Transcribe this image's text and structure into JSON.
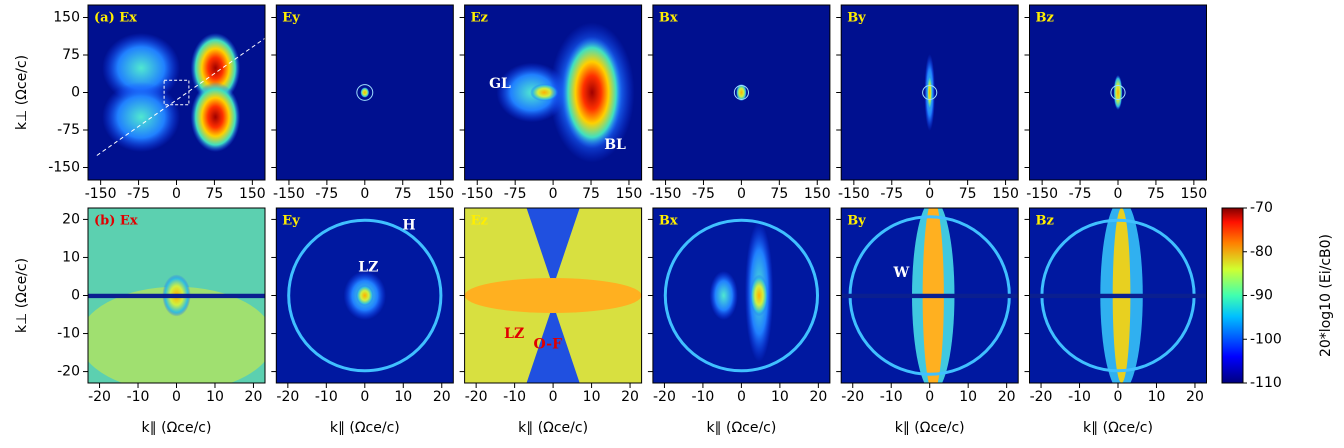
{
  "chart_data": [
    {
      "type": "heatmap",
      "title": "(a) Ex",
      "title_color": "#ffee00",
      "xlim": [
        -175,
        175
      ],
      "ylim": [
        -175,
        175
      ],
      "xticks": [
        -150,
        -75,
        0,
        75,
        150
      ],
      "yticks": [
        150,
        75,
        0,
        -75,
        -150
      ],
      "ylabel": "k⊥ (Ωce/c)"
    },
    {
      "type": "heatmap",
      "title": "Ey",
      "title_color": "#ffee00",
      "xlim": [
        -175,
        175
      ],
      "ylim": [
        -175,
        175
      ],
      "xticks": [
        -150,
        -75,
        0,
        75,
        150
      ],
      "yticks": [
        150,
        75,
        0,
        -75,
        -150
      ]
    },
    {
      "type": "heatmap",
      "title": "Ez",
      "title_color": "#ffee00",
      "xlim": [
        -175,
        175
      ],
      "ylim": [
        -175,
        175
      ],
      "xticks": [
        -150,
        -75,
        0,
        75,
        150
      ],
      "yticks": [
        150,
        75,
        0,
        -75,
        -150
      ],
      "annotations": [
        {
          "text": "GL",
          "color": "#ffffff"
        },
        {
          "text": "BL",
          "color": "#ffffff"
        }
      ]
    },
    {
      "type": "heatmap",
      "title": "Bx",
      "title_color": "#ffee00",
      "xlim": [
        -175,
        175
      ],
      "ylim": [
        -175,
        175
      ],
      "xticks": [
        -150,
        -75,
        0,
        75,
        150
      ],
      "yticks": [
        150,
        75,
        0,
        -75,
        -150
      ]
    },
    {
      "type": "heatmap",
      "title": "By",
      "title_color": "#ffee00",
      "xlim": [
        -175,
        175
      ],
      "ylim": [
        -175,
        175
      ],
      "xticks": [
        -150,
        -75,
        0,
        75,
        150
      ],
      "yticks": [
        150,
        75,
        0,
        -75,
        -150
      ]
    },
    {
      "type": "heatmap",
      "title": "Bz",
      "title_color": "#ffee00",
      "xlim": [
        -175,
        175
      ],
      "ylim": [
        -175,
        175
      ],
      "xticks": [
        -150,
        -75,
        0,
        75,
        150
      ],
      "yticks": [
        150,
        75,
        0,
        -75,
        -150
      ]
    },
    {
      "type": "heatmap",
      "title": "(b) Ex",
      "title_color": "#e00000",
      "xlim": [
        -23,
        23
      ],
      "ylim": [
        -23,
        23
      ],
      "xticks": [
        -20,
        -10,
        0,
        10,
        20
      ],
      "yticks": [
        20,
        10,
        0,
        -10,
        -20
      ],
      "xlabel": "k∥ (Ωce/c)",
      "ylabel": "k⊥ (Ωce/c)"
    },
    {
      "type": "heatmap",
      "title": "Ey",
      "title_color": "#ffee00",
      "xlim": [
        -23,
        23
      ],
      "ylim": [
        -23,
        23
      ],
      "xticks": [
        -20,
        -10,
        0,
        10,
        20
      ],
      "yticks": [
        20,
        10,
        0,
        -10,
        -20
      ],
      "xlabel": "k∥ (Ωce/c)",
      "annotations": [
        {
          "text": "H",
          "color": "#ffffff"
        },
        {
          "text": "LZ",
          "color": "#ffffff"
        }
      ]
    },
    {
      "type": "heatmap",
      "title": "Ez",
      "title_color": "#ffee00",
      "xlim": [
        -23,
        23
      ],
      "ylim": [
        -23,
        23
      ],
      "xticks": [
        -20,
        -10,
        0,
        10,
        20
      ],
      "yticks": [
        20,
        10,
        0,
        -10,
        -20
      ],
      "xlabel": "k∥ (Ωce/c)",
      "annotations": [
        {
          "text": "LZ",
          "color": "#e00000"
        },
        {
          "text": "O-F",
          "color": "#e00000"
        }
      ]
    },
    {
      "type": "heatmap",
      "title": "Bx",
      "title_color": "#ffee00",
      "xlim": [
        -23,
        23
      ],
      "ylim": [
        -23,
        23
      ],
      "xticks": [
        -20,
        -10,
        0,
        10,
        20
      ],
      "yticks": [
        20,
        10,
        0,
        -10,
        -20
      ],
      "xlabel": "k∥ (Ωce/c)"
    },
    {
      "type": "heatmap",
      "title": "By",
      "title_color": "#ffee00",
      "xlim": [
        -23,
        23
      ],
      "ylim": [
        -23,
        23
      ],
      "xticks": [
        -20,
        -10,
        0,
        10,
        20
      ],
      "yticks": [
        20,
        10,
        0,
        -10,
        -20
      ],
      "xlabel": "k∥ (Ωce/c)",
      "annotations": [
        {
          "text": "W",
          "color": "#ffffff"
        }
      ]
    },
    {
      "type": "heatmap",
      "title": "Bz",
      "title_color": "#ffee00",
      "xlim": [
        -23,
        23
      ],
      "ylim": [
        -23,
        23
      ],
      "xticks": [
        -20,
        -10,
        0,
        10,
        20
      ],
      "yticks": [
        20,
        10,
        0,
        -10,
        -20
      ],
      "xlabel": "k∥ (Ωce/c)"
    },
    {
      "type": "colorbar",
      "label": "20*log10 (Ei/cB0)",
      "ylim": [
        -110,
        -70
      ],
      "yticks": [
        -70,
        -80,
        -90,
        -100,
        -110
      ]
    }
  ]
}
